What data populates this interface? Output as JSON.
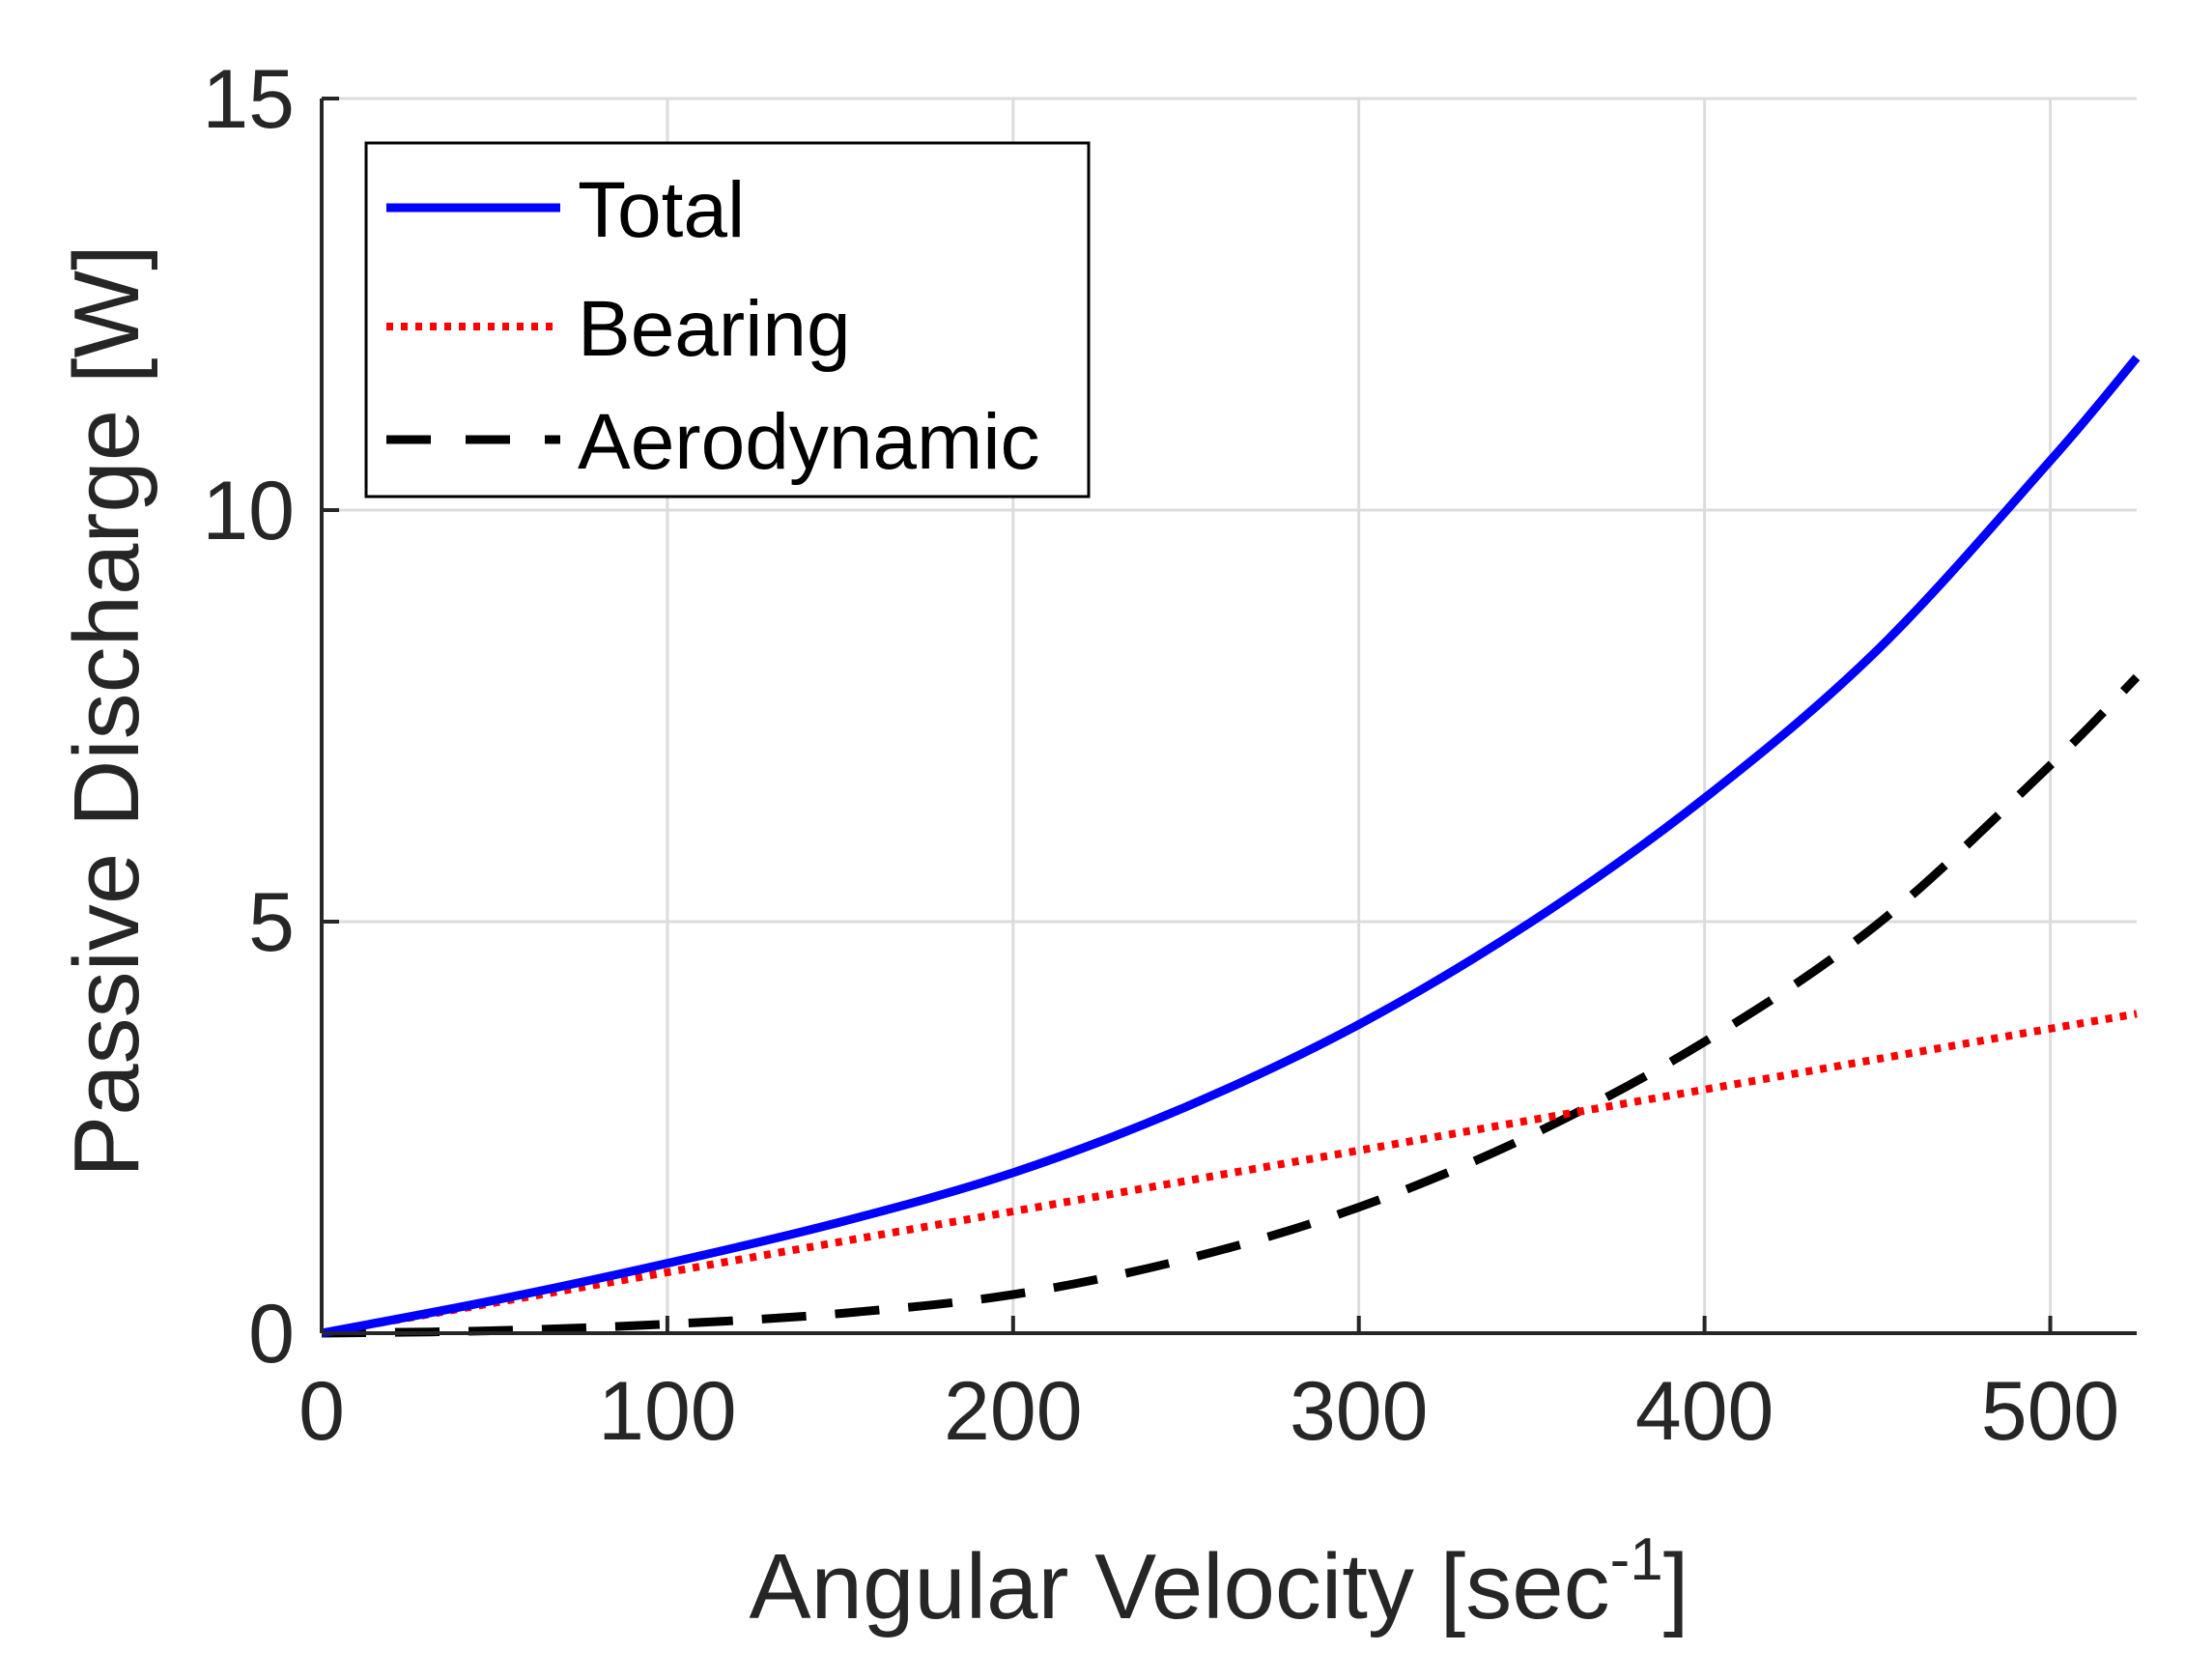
{
  "chart_data": {
    "type": "line",
    "title": "",
    "xlabel": "Angular Velocity [sec",
    "xlabel_superscript": "-1",
    "xlabel_suffix": "]",
    "ylabel": "Passive Discharge [W]",
    "xlim": [
      0,
      525
    ],
    "ylim": [
      0,
      15
    ],
    "xticks": [
      0,
      100,
      200,
      300,
      400,
      500
    ],
    "xtick_labels": [
      "0",
      "100",
      "200",
      "300",
      "400",
      "500"
    ],
    "yticks": [
      0,
      5,
      10,
      15
    ],
    "ytick_labels": [
      "0",
      "5",
      "10",
      "15"
    ],
    "grid": true,
    "legend_position": "top-left",
    "x": [
      0,
      50,
      100,
      150,
      200,
      250,
      300,
      350,
      400,
      450,
      500,
      525
    ],
    "series": [
      {
        "name": "Total",
        "color": "#0000ff",
        "style": "solid",
        "values": [
          0,
          0.4,
          0.85,
          1.35,
          1.95,
          2.75,
          3.75,
          5.0,
          6.5,
          8.3,
          10.6,
          11.85
        ]
      },
      {
        "name": "Bearing",
        "color": "#ff0000",
        "style": "dotted",
        "values": [
          0,
          0.37,
          0.74,
          1.11,
          1.48,
          1.85,
          2.22,
          2.59,
          2.96,
          3.33,
          3.7,
          3.88
        ]
      },
      {
        "name": "Aerodynamic",
        "color": "#000000",
        "style": "dashed",
        "values": [
          0,
          0.03,
          0.11,
          0.24,
          0.47,
          0.9,
          1.53,
          2.41,
          3.54,
          4.97,
          6.9,
          7.97
        ]
      }
    ]
  }
}
